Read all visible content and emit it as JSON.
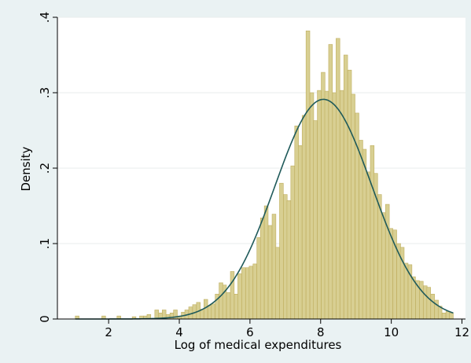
{
  "chart_data": {
    "type": "bar",
    "title": "",
    "xlabel": "Log of medical expenditures",
    "ylabel": "Density",
    "xlim": [
      0.55,
      12.1
    ],
    "ylim": [
      0,
      0.4
    ],
    "x_ticks": [
      {
        "value": 2,
        "label": "2"
      },
      {
        "value": 4,
        "label": "4"
      },
      {
        "value": 6,
        "label": "6"
      },
      {
        "value": 8,
        "label": "8"
      },
      {
        "value": 10,
        "label": "10"
      },
      {
        "value": 12,
        "label": "12"
      }
    ],
    "y_ticks": [
      {
        "value": 0,
        "label": "0"
      },
      {
        "value": 0.1,
        "label": ".1"
      },
      {
        "value": 0.2,
        "label": ".2"
      },
      {
        "value": 0.3,
        "label": ".3"
      },
      {
        "value": 0.4,
        "label": ".4"
      }
    ],
    "grid": "horizontal",
    "bin_width": 0.107,
    "x": [
      1.11,
      1.22,
      1.33,
      1.43,
      1.54,
      1.65,
      1.75,
      1.86,
      1.97,
      2.07,
      2.18,
      2.29,
      2.4,
      2.5,
      2.61,
      2.72,
      2.82,
      2.93,
      3.04,
      3.14,
      3.25,
      3.36,
      3.47,
      3.57,
      3.68,
      3.79,
      3.89,
      4.0,
      4.11,
      4.21,
      4.32,
      4.43,
      4.54,
      4.64,
      4.75,
      4.86,
      4.96,
      5.07,
      5.18,
      5.28,
      5.39,
      5.5,
      5.61,
      5.71,
      5.82,
      5.93,
      6.03,
      6.14,
      6.25,
      6.35,
      6.46,
      6.57,
      6.68,
      6.78,
      6.89,
      7.0,
      7.1,
      7.21,
      7.32,
      7.42,
      7.53,
      7.64,
      7.75,
      7.85,
      7.96,
      8.07,
      8.17,
      8.28,
      8.39,
      8.49,
      8.6,
      8.71,
      8.82,
      8.92,
      9.03,
      9.14,
      9.24,
      9.35,
      9.46,
      9.56,
      9.67,
      9.78,
      9.89,
      9.99,
      10.1,
      10.21,
      10.31,
      10.42,
      10.53,
      10.63,
      10.74,
      10.85,
      10.96,
      11.06,
      11.17,
      11.28,
      11.38,
      11.49,
      11.6,
      11.7
    ],
    "values": [
      0.004,
      0,
      0,
      0,
      0,
      0,
      0,
      0.004,
      0,
      0,
      0,
      0.004,
      0,
      0,
      0,
      0.003,
      0,
      0.004,
      0.004,
      0.006,
      0,
      0.012,
      0.008,
      0.012,
      0.006,
      0.008,
      0.012,
      0.004,
      0.009,
      0.012,
      0.016,
      0.019,
      0.022,
      0.013,
      0.026,
      0.018,
      0.02,
      0.033,
      0.048,
      0.045,
      0.035,
      0.063,
      0.033,
      0.06,
      0.068,
      0.068,
      0.07,
      0.073,
      0.108,
      0.134,
      0.15,
      0.124,
      0.139,
      0.095,
      0.18,
      0.165,
      0.157,
      0.203,
      0.256,
      0.23,
      0.27,
      0.382,
      0.3,
      0.263,
      0.303,
      0.327,
      0.302,
      0.364,
      0.3,
      0.372,
      0.303,
      0.35,
      0.33,
      0.298,
      0.273,
      0.237,
      0.225,
      0.195,
      0.23,
      0.193,
      0.165,
      0.141,
      0.152,
      0.12,
      0.118,
      0.1,
      0.095,
      0.074,
      0.072,
      0.056,
      0.051,
      0.05,
      0.044,
      0.042,
      0.033,
      0.025,
      0.017,
      0.008,
      0.01,
      0.008
    ],
    "normal_fit": {
      "mean": 8.08,
      "sd": 1.37
    },
    "colors": {
      "bar_fill": "#d8cf92",
      "bar_stroke": "#bfae5f",
      "curve": "#1f5a5a",
      "plot_bg": "#ffffff",
      "outer_bg": "#eaf2f3",
      "grid": "#e8eeee"
    }
  }
}
